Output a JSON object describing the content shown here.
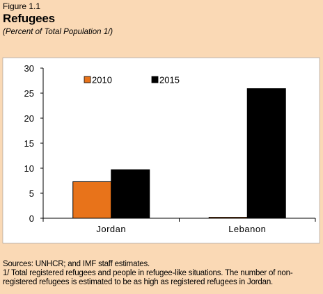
{
  "figure": {
    "label": "Figure 1.1",
    "title": "Refugees",
    "subtitle": "(Percent of Total Population 1/)"
  },
  "chart_data": {
    "type": "bar",
    "categories": [
      "Jordan",
      "Lebanon"
    ],
    "series": [
      {
        "name": "2010",
        "values": [
          7.3,
          0.2
        ],
        "color": "#E8731A"
      },
      {
        "name": "2015",
        "values": [
          9.7,
          25.9
        ],
        "color": "#000000"
      }
    ],
    "ylim": [
      0,
      30
    ],
    "yticks": [
      "0",
      "5",
      "10",
      "15",
      "20",
      "25",
      "30"
    ],
    "legend_position": "top-left",
    "grid": false
  },
  "notes": {
    "sources": "Sources: UNHCR; and IMF staff estimates.",
    "footnote": "1/ Total registered refugees and people in refugee-like situations. The number of non-registered refugees is estimated to be as high as registered refugees in Jordan."
  }
}
